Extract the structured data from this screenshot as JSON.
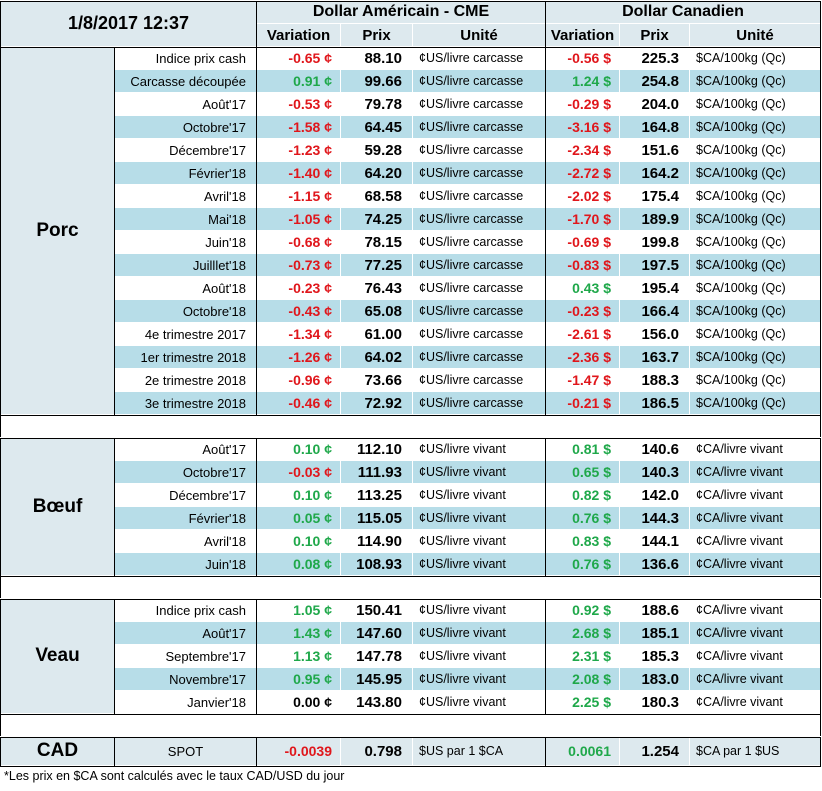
{
  "header": {
    "datetime": "1/8/2017 12:37",
    "usd_title": "Dollar Américain - CME",
    "cad_title": "Dollar Canadien",
    "col_variation": "Variation",
    "col_prix": "Prix",
    "col_unite": "Unité"
  },
  "colors": {
    "negative": "#e0161b",
    "positive": "#1fa84a",
    "band": "#b7dde8",
    "header_bg": "#dde9ee"
  },
  "groups": [
    {
      "name": "Porc",
      "rows": [
        {
          "label": "Indice prix cash",
          "usd_var": "-0.65 ¢",
          "usd_price": "88.10",
          "usd_unit": "¢US/livre carcasse",
          "cad_var": "-0.56 $",
          "cad_price": "225.3",
          "cad_unit": "$CA/100kg (Qc)"
        },
        {
          "label": "Carcasse découpée",
          "usd_var": "0.91 ¢",
          "usd_price": "99.66",
          "usd_unit": "¢US/livre carcasse",
          "cad_var": "1.24 $",
          "cad_price": "254.8",
          "cad_unit": "$CA/100kg (Qc)"
        },
        {
          "label": "Août'17",
          "usd_var": "-0.53 ¢",
          "usd_price": "79.78",
          "usd_unit": "¢US/livre carcasse",
          "cad_var": "-0.29 $",
          "cad_price": "204.0",
          "cad_unit": "$CA/100kg (Qc)"
        },
        {
          "label": "Octobre'17",
          "usd_var": "-1.58 ¢",
          "usd_price": "64.45",
          "usd_unit": "¢US/livre carcasse",
          "cad_var": "-3.16 $",
          "cad_price": "164.8",
          "cad_unit": "$CA/100kg (Qc)"
        },
        {
          "label": "Décembre'17",
          "usd_var": "-1.23 ¢",
          "usd_price": "59.28",
          "usd_unit": "¢US/livre carcasse",
          "cad_var": "-2.34 $",
          "cad_price": "151.6",
          "cad_unit": "$CA/100kg (Qc)"
        },
        {
          "label": "Février'18",
          "usd_var": "-1.40 ¢",
          "usd_price": "64.20",
          "usd_unit": "¢US/livre carcasse",
          "cad_var": "-2.72 $",
          "cad_price": "164.2",
          "cad_unit": "$CA/100kg (Qc)"
        },
        {
          "label": "Avril'18",
          "usd_var": "-1.15 ¢",
          "usd_price": "68.58",
          "usd_unit": "¢US/livre carcasse",
          "cad_var": "-2.02 $",
          "cad_price": "175.4",
          "cad_unit": "$CA/100kg (Qc)"
        },
        {
          "label": "Mai'18",
          "usd_var": "-1.05 ¢",
          "usd_price": "74.25",
          "usd_unit": "¢US/livre carcasse",
          "cad_var": "-1.70 $",
          "cad_price": "189.9",
          "cad_unit": "$CA/100kg (Qc)"
        },
        {
          "label": "Juin'18",
          "usd_var": "-0.68 ¢",
          "usd_price": "78.15",
          "usd_unit": "¢US/livre carcasse",
          "cad_var": "-0.69 $",
          "cad_price": "199.8",
          "cad_unit": "$CA/100kg (Qc)"
        },
        {
          "label": "Juilllet'18",
          "usd_var": "-0.73 ¢",
          "usd_price": "77.25",
          "usd_unit": "¢US/livre carcasse",
          "cad_var": "-0.83 $",
          "cad_price": "197.5",
          "cad_unit": "$CA/100kg (Qc)"
        },
        {
          "label": "Août'18",
          "usd_var": "-0.23 ¢",
          "usd_price": "76.43",
          "usd_unit": "¢US/livre carcasse",
          "cad_var": "0.43 $",
          "cad_price": "195.4",
          "cad_unit": "$CA/100kg (Qc)"
        },
        {
          "label": "Octobre'18",
          "usd_var": "-0.43 ¢",
          "usd_price": "65.08",
          "usd_unit": "¢US/livre carcasse",
          "cad_var": "-0.23 $",
          "cad_price": "166.4",
          "cad_unit": "$CA/100kg (Qc)"
        },
        {
          "label": "4e trimestre 2017",
          "usd_var": "-1.34 ¢",
          "usd_price": "61.00",
          "usd_unit": "¢US/livre carcasse",
          "cad_var": "-2.61 $",
          "cad_price": "156.0",
          "cad_unit": "$CA/100kg (Qc)"
        },
        {
          "label": "1er trimestre 2018",
          "usd_var": "-1.26 ¢",
          "usd_price": "64.02",
          "usd_unit": "¢US/livre carcasse",
          "cad_var": "-2.36 $",
          "cad_price": "163.7",
          "cad_unit": "$CA/100kg (Qc)"
        },
        {
          "label": "2e trimestre 2018",
          "usd_var": "-0.96 ¢",
          "usd_price": "73.66",
          "usd_unit": "¢US/livre carcasse",
          "cad_var": "-1.47 $",
          "cad_price": "188.3",
          "cad_unit": "$CA/100kg (Qc)"
        },
        {
          "label": "3e trimestre 2018",
          "usd_var": "-0.46 ¢",
          "usd_price": "72.92",
          "usd_unit": "¢US/livre carcasse",
          "cad_var": "-0.21 $",
          "cad_price": "186.5",
          "cad_unit": "$CA/100kg (Qc)"
        }
      ]
    },
    {
      "name": "Bœuf",
      "rows": [
        {
          "label": "Août'17",
          "usd_var": "0.10 ¢",
          "usd_price": "112.10",
          "usd_unit": "¢US/livre vivant",
          "cad_var": "0.81 $",
          "cad_price": "140.6",
          "cad_unit": "¢CA/livre vivant"
        },
        {
          "label": "Octobre'17",
          "usd_var": "-0.03 ¢",
          "usd_price": "111.93",
          "usd_unit": "¢US/livre vivant",
          "cad_var": "0.65 $",
          "cad_price": "140.3",
          "cad_unit": "¢CA/livre vivant"
        },
        {
          "label": "Décembre'17",
          "usd_var": "0.10 ¢",
          "usd_price": "113.25",
          "usd_unit": "¢US/livre vivant",
          "cad_var": "0.82 $",
          "cad_price": "142.0",
          "cad_unit": "¢CA/livre vivant"
        },
        {
          "label": "Février'18",
          "usd_var": "0.05 ¢",
          "usd_price": "115.05",
          "usd_unit": "¢US/livre vivant",
          "cad_var": "0.76 $",
          "cad_price": "144.3",
          "cad_unit": "¢CA/livre vivant"
        },
        {
          "label": "Avril'18",
          "usd_var": "0.10 ¢",
          "usd_price": "114.90",
          "usd_unit": "¢US/livre vivant",
          "cad_var": "0.83 $",
          "cad_price": "144.1",
          "cad_unit": "¢CA/livre vivant"
        },
        {
          "label": "Juin'18",
          "usd_var": "0.08 ¢",
          "usd_price": "108.93",
          "usd_unit": "¢US/livre vivant",
          "cad_var": "0.76 $",
          "cad_price": "136.6",
          "cad_unit": "¢CA/livre vivant"
        }
      ]
    },
    {
      "name": "Veau",
      "rows": [
        {
          "label": "Indice prix cash",
          "usd_var": "1.05 ¢",
          "usd_price": "150.41",
          "usd_unit": "¢US/livre vivant",
          "cad_var": "0.92 $",
          "cad_price": "188.6",
          "cad_unit": "¢CA/livre vivant"
        },
        {
          "label": "Août'17",
          "usd_var": "1.43 ¢",
          "usd_price": "147.60",
          "usd_unit": "¢US/livre vivant",
          "cad_var": "2.68 $",
          "cad_price": "185.1",
          "cad_unit": "¢CA/livre vivant"
        },
        {
          "label": "Septembre'17",
          "usd_var": "1.13 ¢",
          "usd_price": "147.78",
          "usd_unit": "¢US/livre vivant",
          "cad_var": "2.31 $",
          "cad_price": "185.3",
          "cad_unit": "¢CA/livre vivant"
        },
        {
          "label": "Novembre'17",
          "usd_var": "0.95 ¢",
          "usd_price": "145.95",
          "usd_unit": "¢US/livre vivant",
          "cad_var": "2.08 $",
          "cad_price": "183.0",
          "cad_unit": "¢CA/livre vivant"
        },
        {
          "label": "Janvier'18",
          "usd_var": "0.00 ¢",
          "usd_price": "143.80",
          "usd_unit": "¢US/livre vivant",
          "cad_var": "2.25 $",
          "cad_price": "180.3",
          "cad_unit": "¢CA/livre vivant"
        }
      ]
    }
  ],
  "cad": {
    "name": "CAD",
    "label": "SPOT",
    "usd_var": "-0.0039",
    "usd_price": "0.798",
    "usd_unit": "$US par 1 $CA",
    "cad_var": "0.0061",
    "cad_price": "1.254",
    "cad_unit": "$CA par 1 $US"
  },
  "footnote": "*Les  prix en $CA sont calculés avec le taux CAD/USD du jour"
}
